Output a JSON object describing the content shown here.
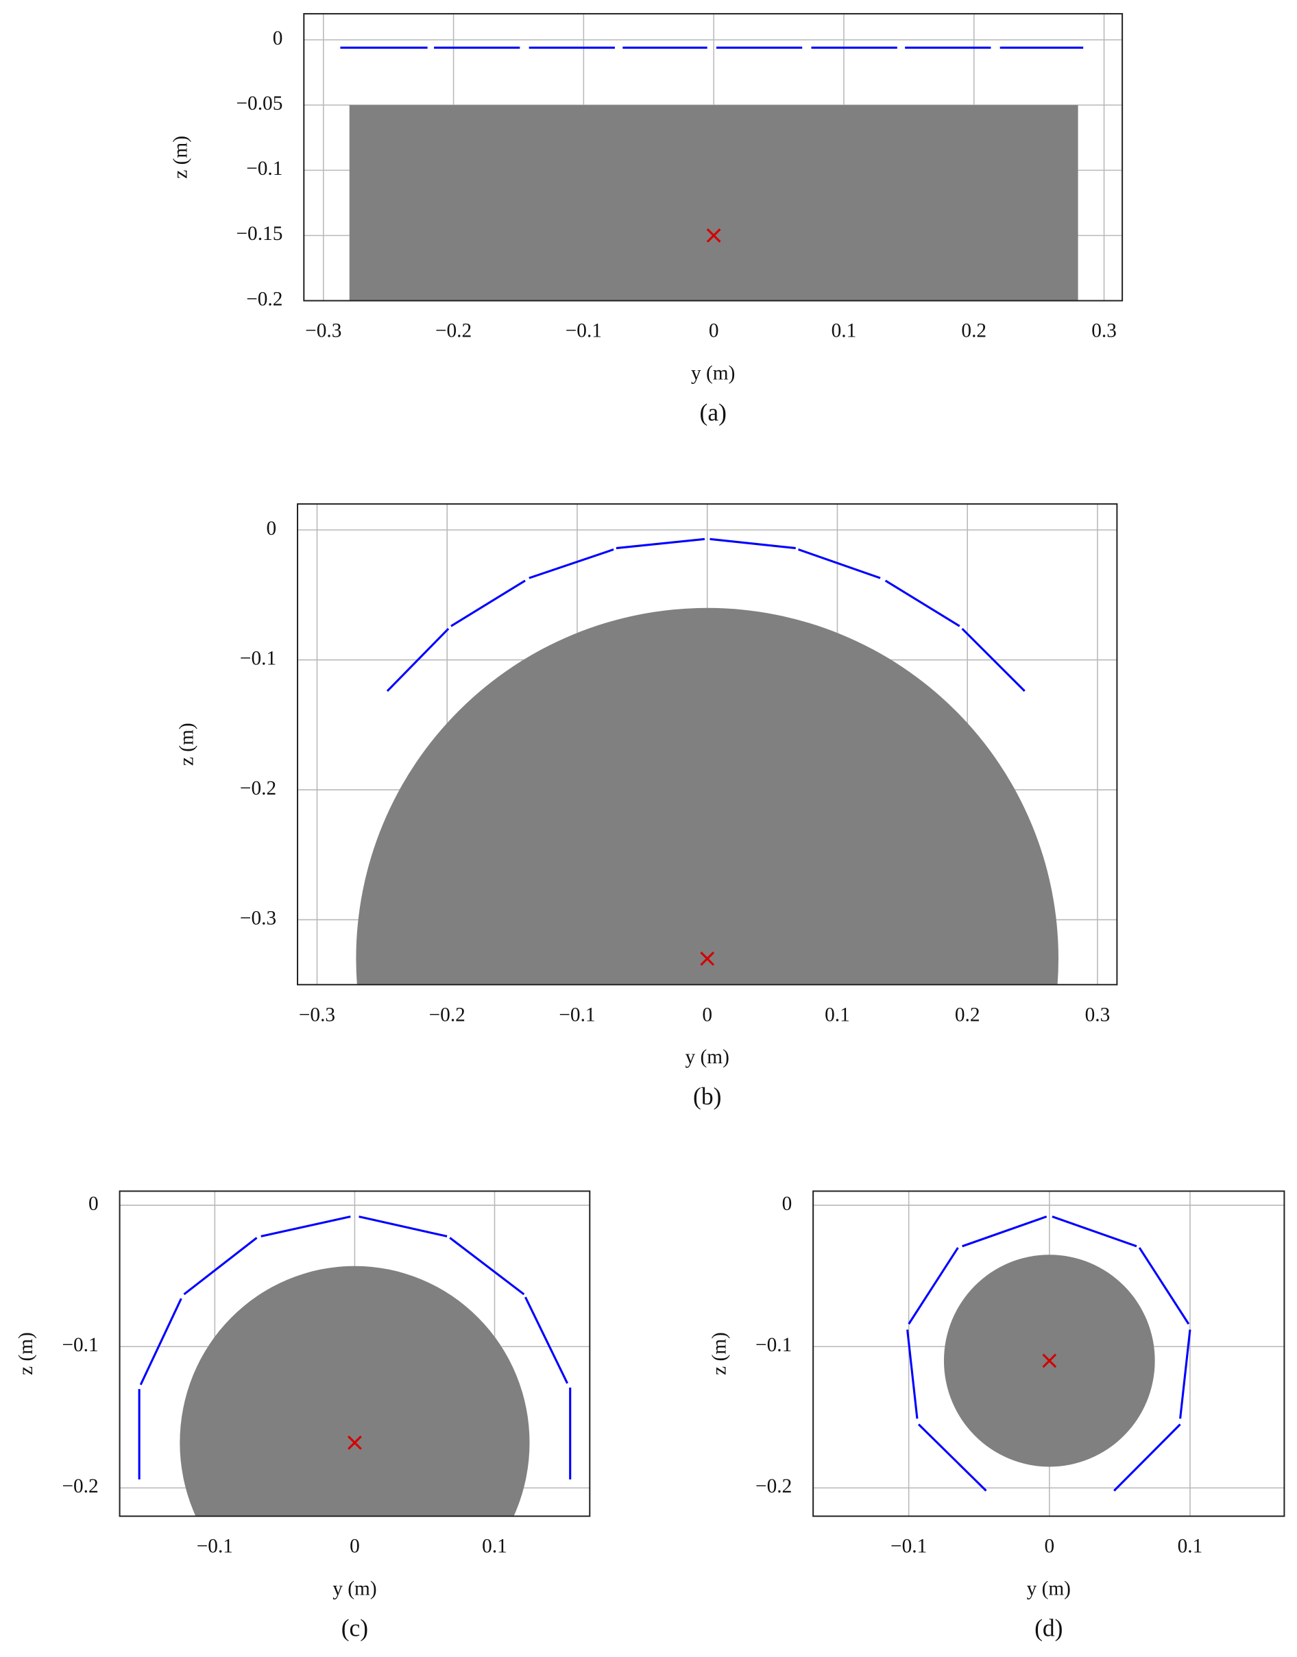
{
  "chart_data": [
    {
      "type": "line",
      "caption": "(a)",
      "xlabel": "y (m)",
      "ylabel": "z (m)",
      "grid": true,
      "xlim": [
        -0.315,
        0.314
      ],
      "ylim": [
        -0.2,
        0.02
      ],
      "xticks": [
        {
          "value": -0.3,
          "label": "−0.3"
        },
        {
          "value": -0.2,
          "label": "−0.2"
        },
        {
          "value": -0.1,
          "label": "−0.1"
        },
        0,
        0.1,
        0.2,
        0.3
      ],
      "yticks": [
        0,
        {
          "value": -0.05,
          "label": "−0.05"
        },
        {
          "value": -0.1,
          "label": "−0.1"
        },
        {
          "value": -0.15,
          "label": "−0.15"
        },
        {
          "value": -0.2,
          "label": "−0.2"
        }
      ],
      "shapes": [
        {
          "kind": "rect",
          "color": "#808080",
          "x": [
            -0.28,
            0.28
          ],
          "y": [
            -0.2,
            -0.05
          ]
        }
      ],
      "series": [
        {
          "color": "#0000ff",
          "x": [
            -0.287,
            -0.22,
            null,
            -0.215,
            -0.149,
            null,
            -0.142,
            -0.076,
            null,
            -0.07,
            -0.005,
            null,
            0.002,
            0.068,
            null,
            0.075,
            0.141,
            null,
            0.147,
            0.213,
            null,
            0.22,
            0.284
          ],
          "values": [
            -0.006,
            -0.006,
            null,
            -0.006,
            -0.006,
            null,
            -0.006,
            -0.006,
            null,
            -0.006,
            -0.006,
            null,
            -0.006,
            -0.006,
            null,
            -0.006,
            -0.006,
            null,
            -0.006,
            -0.006,
            null,
            -0.006,
            -0.006
          ]
        }
      ],
      "markers": [
        {
          "symbol": "x",
          "color": "#d40000",
          "x": 0,
          "y": -0.15
        }
      ]
    },
    {
      "type": "line",
      "caption": "(b)",
      "xlabel": "y (m)",
      "ylabel": "z (m)",
      "grid": true,
      "xlim": [
        -0.315,
        0.315
      ],
      "ylim": [
        -0.35,
        0.02
      ],
      "xticks": [
        {
          "value": -0.3,
          "label": "−0.3"
        },
        {
          "value": -0.2,
          "label": "−0.2"
        },
        {
          "value": -0.1,
          "label": "−0.1"
        },
        0,
        0.1,
        0.2,
        0.3
      ],
      "yticks": [
        0,
        {
          "value": -0.1,
          "label": "−0.1"
        },
        {
          "value": -0.2,
          "label": "−0.2"
        },
        {
          "value": -0.3,
          "label": "−0.3"
        }
      ],
      "shapes": [
        {
          "kind": "circle",
          "color": "#808080",
          "cx": 0,
          "cy": -0.33,
          "r": 0.27
        }
      ],
      "series": [
        {
          "color": "#0000ff",
          "x": [
            -0.246,
            -0.199,
            null,
            -0.197,
            -0.14,
            null,
            -0.137,
            -0.072,
            null,
            -0.07,
            -0.002,
            null,
            0.002,
            0.068,
            null,
            0.07,
            0.133,
            null,
            0.137,
            0.194,
            null,
            0.196,
            0.244
          ],
          "values": [
            -0.124,
            -0.076,
            null,
            -0.074,
            -0.039,
            null,
            -0.037,
            -0.015,
            null,
            -0.014,
            -0.007,
            null,
            -0.007,
            -0.014,
            null,
            -0.015,
            -0.037,
            null,
            -0.039,
            -0.074,
            null,
            -0.076,
            -0.124
          ]
        }
      ],
      "markers": [
        {
          "symbol": "x",
          "color": "#d40000",
          "x": 0,
          "y": -0.33
        }
      ]
    },
    {
      "type": "line",
      "caption": "(c)",
      "xlabel": "y (m)",
      "ylabel": "z (m)",
      "grid": true,
      "xlim": [
        -0.168,
        0.168
      ],
      "ylim": [
        -0.22,
        0.01
      ],
      "xticks": [
        {
          "value": -0.1,
          "label": "−0.1"
        },
        0,
        0.1
      ],
      "yticks": [
        0,
        {
          "value": -0.1,
          "label": "−0.1"
        },
        {
          "value": -0.2,
          "label": "−0.2"
        }
      ],
      "shapes": [
        {
          "kind": "circle",
          "color": "#808080",
          "cx": 0,
          "cy": -0.168,
          "r": 0.125
        }
      ],
      "series": [
        {
          "color": "#0000ff",
          "x": [
            -0.154,
            -0.154,
            null,
            -0.153,
            -0.124,
            null,
            -0.122,
            -0.07,
            null,
            -0.067,
            -0.003,
            null,
            0.003,
            0.066,
            null,
            0.068,
            0.121,
            null,
            0.122,
            0.152,
            null,
            0.154,
            0.154
          ],
          "values": [
            -0.194,
            -0.13,
            null,
            -0.127,
            -0.066,
            null,
            -0.063,
            -0.023,
            null,
            -0.022,
            -0.008,
            null,
            -0.008,
            -0.022,
            null,
            -0.023,
            -0.063,
            null,
            -0.065,
            -0.126,
            null,
            -0.129,
            -0.194
          ]
        }
      ],
      "markers": [
        {
          "symbol": "x",
          "color": "#d40000",
          "x": 0,
          "y": -0.168
        }
      ]
    },
    {
      "type": "line",
      "caption": "(d)",
      "xlabel": "y (m)",
      "ylabel": "z (m)",
      "grid": true,
      "xlim": [
        -0.168,
        0.167
      ],
      "ylim": [
        -0.22,
        0.01
      ],
      "xticks": [
        {
          "value": -0.1,
          "label": "−0.1"
        },
        0,
        0.1
      ],
      "yticks": [
        0,
        {
          "value": -0.1,
          "label": "−0.1"
        },
        {
          "value": -0.2,
          "label": "−0.2"
        }
      ],
      "shapes": [
        {
          "kind": "circle",
          "color": "#808080",
          "cx": 0,
          "cy": -0.11,
          "r": 0.075
        }
      ],
      "series": [
        {
          "color": "#0000ff",
          "x": [
            -0.045,
            -0.093,
            null,
            -0.094,
            -0.101,
            null,
            -0.1,
            -0.065,
            null,
            -0.062,
            -0.002,
            null,
            0.002,
            0.062,
            null,
            0.064,
            0.099,
            null,
            0.1,
            0.093,
            null,
            0.093,
            0.046
          ],
          "values": [
            -0.202,
            -0.155,
            null,
            -0.151,
            -0.088,
            null,
            -0.084,
            -0.03,
            null,
            -0.029,
            -0.008,
            null,
            -0.008,
            -0.029,
            null,
            -0.03,
            -0.084,
            null,
            -0.088,
            -0.151,
            null,
            -0.155,
            -0.202
          ]
        }
      ],
      "markers": [
        {
          "symbol": "x",
          "color": "#d40000",
          "x": 0,
          "y": -0.11
        }
      ]
    }
  ]
}
